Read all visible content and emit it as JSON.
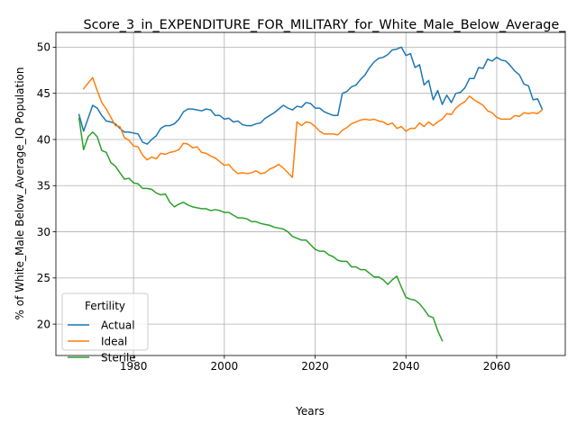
{
  "chart_data": {
    "type": "line",
    "title": "Score_3_in_EXPENDITURE_FOR_MILITARY_for_White_Male_Below_Average_",
    "xlabel": "Years",
    "ylabel": "% of White_Male Below_Average_IQ Population",
    "xlim": [
      1962.9,
      2075.1
    ],
    "ylim": [
      16.6,
      51.6
    ],
    "x_ticks": [
      1980,
      2000,
      2020,
      2040,
      2060
    ],
    "x_tick_labels": [
      "1980",
      "2000",
      "2020",
      "2040",
      "2060"
    ],
    "y_ticks": [
      20,
      25,
      30,
      35,
      40,
      45,
      50
    ],
    "y_tick_labels": [
      "20",
      "25",
      "30",
      "35",
      "40",
      "45",
      "50"
    ],
    "grid": true,
    "legend": {
      "title": "Fertility",
      "placement": "lower-left"
    },
    "series": [
      {
        "name": "Actual",
        "color": "#1f77b4",
        "points": [
          [
            1968,
            42.7
          ],
          [
            1969,
            40.9
          ],
          [
            1970,
            42.3
          ],
          [
            1971,
            43.7
          ],
          [
            1972,
            43.4
          ],
          [
            1973,
            42.6
          ],
          [
            1974,
            42.0
          ],
          [
            1975,
            41.9
          ],
          [
            1976,
            41.7
          ],
          [
            1977,
            41.2
          ],
          [
            1978,
            40.8
          ],
          [
            1979,
            40.8
          ],
          [
            1980,
            40.7
          ],
          [
            1981,
            40.6
          ],
          [
            1982,
            39.7
          ],
          [
            1983,
            39.5
          ],
          [
            1984,
            40.0
          ],
          [
            1985,
            40.4
          ],
          [
            1986,
            41.2
          ],
          [
            1987,
            41.5
          ],
          [
            1988,
            41.5
          ],
          [
            1989,
            41.7
          ],
          [
            1990,
            42.2
          ],
          [
            1991,
            43.0
          ],
          [
            1992,
            43.3
          ],
          [
            1993,
            43.3
          ],
          [
            1994,
            43.2
          ],
          [
            1995,
            43.1
          ],
          [
            1996,
            43.3
          ],
          [
            1997,
            43.2
          ],
          [
            1998,
            42.6
          ],
          [
            1999,
            42.6
          ],
          [
            2000,
            42.2
          ],
          [
            2001,
            42.3
          ],
          [
            2002,
            41.9
          ],
          [
            2003,
            42.0
          ],
          [
            2004,
            41.6
          ],
          [
            2005,
            41.5
          ],
          [
            2006,
            41.5
          ],
          [
            2007,
            41.7
          ],
          [
            2008,
            41.8
          ],
          [
            2009,
            42.3
          ],
          [
            2010,
            42.6
          ],
          [
            2011,
            42.9
          ],
          [
            2012,
            43.3
          ],
          [
            2013,
            43.7
          ],
          [
            2014,
            43.4
          ],
          [
            2015,
            43.2
          ],
          [
            2016,
            43.6
          ],
          [
            2017,
            43.5
          ],
          [
            2018,
            44.0
          ],
          [
            2019,
            43.9
          ],
          [
            2020,
            43.4
          ],
          [
            2021,
            43.4
          ],
          [
            2022,
            43.0
          ],
          [
            2023,
            42.8
          ],
          [
            2024,
            42.6
          ],
          [
            2025,
            42.6
          ],
          [
            2026,
            45.0
          ],
          [
            2027,
            45.2
          ],
          [
            2028,
            45.7
          ],
          [
            2029,
            45.9
          ],
          [
            2030,
            46.5
          ],
          [
            2031,
            47.0
          ],
          [
            2032,
            47.8
          ],
          [
            2033,
            48.4
          ],
          [
            2034,
            48.8
          ],
          [
            2035,
            48.9
          ],
          [
            2036,
            49.2
          ],
          [
            2037,
            49.7
          ],
          [
            2038,
            49.8
          ],
          [
            2039,
            50.0
          ],
          [
            2040,
            49.1
          ],
          [
            2041,
            49.3
          ],
          [
            2042,
            47.8
          ],
          [
            2043,
            48.1
          ],
          [
            2044,
            45.9
          ],
          [
            2045,
            46.4
          ],
          [
            2046,
            44.3
          ],
          [
            2047,
            45.3
          ],
          [
            2048,
            43.8
          ],
          [
            2049,
            44.8
          ],
          [
            2050,
            44.0
          ],
          [
            2051,
            45.0
          ],
          [
            2052,
            45.1
          ],
          [
            2053,
            45.6
          ],
          [
            2054,
            46.6
          ],
          [
            2055,
            46.6
          ],
          [
            2056,
            47.8
          ],
          [
            2057,
            47.7
          ],
          [
            2058,
            48.7
          ],
          [
            2059,
            48.5
          ],
          [
            2060,
            48.9
          ],
          [
            2061,
            48.6
          ],
          [
            2062,
            48.5
          ],
          [
            2063,
            48.0
          ],
          [
            2064,
            47.4
          ],
          [
            2065,
            47.0
          ],
          [
            2066,
            46.0
          ],
          [
            2067,
            45.8
          ],
          [
            2068,
            44.3
          ],
          [
            2069,
            44.4
          ],
          [
            2070,
            43.3
          ]
        ]
      },
      {
        "name": "Ideal",
        "color": "#ff7f0e",
        "points": [
          [
            1969,
            45.5
          ],
          [
            1970,
            46.1
          ],
          [
            1971,
            46.7
          ],
          [
            1972,
            45.3
          ],
          [
            1973,
            44.0
          ],
          [
            1974,
            43.3
          ],
          [
            1975,
            42.4
          ],
          [
            1976,
            41.5
          ],
          [
            1977,
            41.4
          ],
          [
            1978,
            40.2
          ],
          [
            1979,
            39.9
          ],
          [
            1980,
            39.3
          ],
          [
            1981,
            39.2
          ],
          [
            1982,
            38.3
          ],
          [
            1983,
            37.8
          ],
          [
            1984,
            38.1
          ],
          [
            1985,
            37.9
          ],
          [
            1986,
            38.5
          ],
          [
            1987,
            38.4
          ],
          [
            1988,
            38.6
          ],
          [
            1989,
            38.7
          ],
          [
            1990,
            38.9
          ],
          [
            1991,
            39.6
          ],
          [
            1992,
            39.5
          ],
          [
            1993,
            39.1
          ],
          [
            1994,
            39.2
          ],
          [
            1995,
            38.6
          ],
          [
            1996,
            38.5
          ],
          [
            1997,
            38.2
          ],
          [
            1998,
            38.0
          ],
          [
            1999,
            37.6
          ],
          [
            2000,
            37.2
          ],
          [
            2001,
            37.3
          ],
          [
            2002,
            36.7
          ],
          [
            2003,
            36.3
          ],
          [
            2004,
            36.4
          ],
          [
            2005,
            36.3
          ],
          [
            2006,
            36.4
          ],
          [
            2007,
            36.6
          ],
          [
            2008,
            36.3
          ],
          [
            2009,
            36.4
          ],
          [
            2010,
            36.8
          ],
          [
            2011,
            37.0
          ],
          [
            2012,
            37.3
          ],
          [
            2013,
            36.9
          ],
          [
            2014,
            36.4
          ],
          [
            2015,
            35.9
          ],
          [
            2016,
            41.9
          ],
          [
            2017,
            41.5
          ],
          [
            2018,
            41.9
          ],
          [
            2019,
            41.8
          ],
          [
            2020,
            41.4
          ],
          [
            2021,
            40.9
          ],
          [
            2022,
            40.6
          ],
          [
            2023,
            40.6
          ],
          [
            2024,
            40.6
          ],
          [
            2025,
            40.5
          ],
          [
            2026,
            41.0
          ],
          [
            2027,
            41.3
          ],
          [
            2028,
            41.7
          ],
          [
            2029,
            41.9
          ],
          [
            2030,
            42.1
          ],
          [
            2031,
            42.2
          ],
          [
            2032,
            42.1
          ],
          [
            2033,
            42.2
          ],
          [
            2034,
            42.0
          ],
          [
            2035,
            41.9
          ],
          [
            2036,
            41.6
          ],
          [
            2037,
            41.8
          ],
          [
            2038,
            41.2
          ],
          [
            2039,
            41.4
          ],
          [
            2040,
            40.9
          ],
          [
            2041,
            41.2
          ],
          [
            2042,
            41.2
          ],
          [
            2043,
            41.8
          ],
          [
            2044,
            41.4
          ],
          [
            2045,
            41.9
          ],
          [
            2046,
            41.5
          ],
          [
            2047,
            41.9
          ],
          [
            2048,
            42.2
          ],
          [
            2049,
            42.8
          ],
          [
            2050,
            42.7
          ],
          [
            2051,
            43.4
          ],
          [
            2052,
            43.8
          ],
          [
            2053,
            44.1
          ],
          [
            2054,
            44.7
          ],
          [
            2055,
            44.3
          ],
          [
            2056,
            44.0
          ],
          [
            2057,
            43.7
          ],
          [
            2058,
            43.1
          ],
          [
            2059,
            42.9
          ],
          [
            2060,
            42.4
          ],
          [
            2061,
            42.2
          ],
          [
            2062,
            42.2
          ],
          [
            2063,
            42.2
          ],
          [
            2064,
            42.6
          ],
          [
            2065,
            42.5
          ],
          [
            2066,
            42.9
          ],
          [
            2067,
            42.8
          ],
          [
            2068,
            42.9
          ],
          [
            2069,
            42.8
          ],
          [
            2070,
            43.2
          ]
        ]
      },
      {
        "name": "Sterile",
        "color": "#2ca02c",
        "points": [
          [
            1968,
            42.3
          ],
          [
            1969,
            38.9
          ],
          [
            1970,
            40.3
          ],
          [
            1971,
            40.8
          ],
          [
            1972,
            40.3
          ],
          [
            1973,
            38.8
          ],
          [
            1974,
            38.6
          ],
          [
            1975,
            37.5
          ],
          [
            1976,
            37.1
          ],
          [
            1977,
            36.4
          ],
          [
            1978,
            35.7
          ],
          [
            1979,
            35.8
          ],
          [
            1980,
            35.3
          ],
          [
            1981,
            35.2
          ],
          [
            1982,
            34.7
          ],
          [
            1983,
            34.7
          ],
          [
            1984,
            34.6
          ],
          [
            1985,
            34.2
          ],
          [
            1986,
            34.0
          ],
          [
            1987,
            34.1
          ],
          [
            1988,
            33.2
          ],
          [
            1989,
            32.7
          ],
          [
            1990,
            33.0
          ],
          [
            1991,
            33.2
          ],
          [
            1992,
            32.9
          ],
          [
            1993,
            32.7
          ],
          [
            1994,
            32.6
          ],
          [
            1995,
            32.5
          ],
          [
            1996,
            32.5
          ],
          [
            1997,
            32.3
          ],
          [
            1998,
            32.4
          ],
          [
            1999,
            32.3
          ],
          [
            2000,
            32.1
          ],
          [
            2001,
            32.1
          ],
          [
            2002,
            31.8
          ],
          [
            2003,
            31.5
          ],
          [
            2004,
            31.5
          ],
          [
            2005,
            31.4
          ],
          [
            2006,
            31.1
          ],
          [
            2007,
            31.1
          ],
          [
            2008,
            30.9
          ],
          [
            2009,
            30.8
          ],
          [
            2010,
            30.7
          ],
          [
            2011,
            30.5
          ],
          [
            2012,
            30.4
          ],
          [
            2013,
            30.3
          ],
          [
            2014,
            30.0
          ],
          [
            2015,
            29.5
          ],
          [
            2016,
            29.3
          ],
          [
            2017,
            29.1
          ],
          [
            2018,
            29.1
          ],
          [
            2019,
            28.6
          ],
          [
            2020,
            28.1
          ],
          [
            2021,
            27.9
          ],
          [
            2022,
            27.9
          ],
          [
            2023,
            27.5
          ],
          [
            2024,
            27.3
          ],
          [
            2025,
            26.9
          ],
          [
            2026,
            26.8
          ],
          [
            2027,
            26.8
          ],
          [
            2028,
            26.2
          ],
          [
            2029,
            26.2
          ],
          [
            2030,
            25.9
          ],
          [
            2031,
            25.9
          ],
          [
            2032,
            25.5
          ],
          [
            2033,
            25.1
          ],
          [
            2034,
            25.1
          ],
          [
            2035,
            24.8
          ],
          [
            2036,
            24.3
          ],
          [
            2037,
            24.8
          ],
          [
            2038,
            25.2
          ],
          [
            2039,
            24.0
          ],
          [
            2040,
            22.9
          ],
          [
            2041,
            22.7
          ],
          [
            2042,
            22.6
          ],
          [
            2043,
            22.2
          ],
          [
            2044,
            21.6
          ],
          [
            2045,
            20.9
          ],
          [
            2046,
            20.7
          ],
          [
            2047,
            19.3
          ],
          [
            2048,
            18.2
          ]
        ]
      }
    ]
  }
}
